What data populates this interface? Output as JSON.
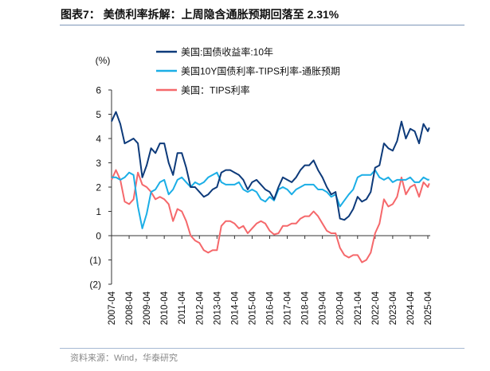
{
  "title": "图表7：  美债利率拆解：上周隐含通胀预期回落至 2.31%",
  "source": "资料来源：Wind，华泰研究",
  "chart_data": {
    "type": "line",
    "title": "图表7：  美债利率拆解：上周隐含通胀预期回落至 2.31%",
    "ylabel": "(%)",
    "xlabel": "",
    "ylim": [
      -2,
      6
    ],
    "yticks": [
      6,
      5,
      4,
      3,
      2,
      1,
      0,
      -1,
      -2
    ],
    "ytick_labels": [
      "6",
      "5",
      "4",
      "3",
      "2",
      "1",
      "0",
      "(1)",
      "(2)"
    ],
    "xtick_labels": [
      "2007-04",
      "2008-04",
      "2009-04",
      "2010-04",
      "2011-04",
      "2012-04",
      "2013-04",
      "2014-04",
      "2015-04",
      "2016-04",
      "2017-04",
      "2018-04",
      "2019-04",
      "2020-04",
      "2021-04",
      "2022-04",
      "2023-04",
      "2024-04",
      "2025-04"
    ],
    "grid": false,
    "legend_position": "top",
    "x": [
      "2007-04",
      "2007-07",
      "2007-10",
      "2008-01",
      "2008-04",
      "2008-07",
      "2008-10",
      "2009-01",
      "2009-04",
      "2009-07",
      "2009-10",
      "2010-01",
      "2010-04",
      "2010-07",
      "2010-10",
      "2011-01",
      "2011-04",
      "2011-07",
      "2011-10",
      "2012-01",
      "2012-04",
      "2012-07",
      "2012-10",
      "2013-01",
      "2013-04",
      "2013-07",
      "2013-10",
      "2014-01",
      "2014-04",
      "2014-07",
      "2014-10",
      "2015-01",
      "2015-04",
      "2015-07",
      "2015-10",
      "2016-01",
      "2016-04",
      "2016-07",
      "2016-10",
      "2017-01",
      "2017-04",
      "2017-07",
      "2017-10",
      "2018-01",
      "2018-04",
      "2018-07",
      "2018-10",
      "2019-01",
      "2019-04",
      "2019-07",
      "2019-10",
      "2020-01",
      "2020-04",
      "2020-07",
      "2020-10",
      "2021-01",
      "2021-04",
      "2021-07",
      "2021-10",
      "2022-01",
      "2022-04",
      "2022-07",
      "2022-10",
      "2023-01",
      "2023-04",
      "2023-07",
      "2023-10",
      "2024-01",
      "2024-04",
      "2024-07",
      "2024-10",
      "2025-01",
      "2025-04",
      "2025-05"
    ],
    "series": [
      {
        "name": "美国:国债收益率:10年",
        "color": "#0D3A7A",
        "values": [
          4.7,
          5.1,
          4.6,
          3.8,
          3.9,
          4.0,
          3.8,
          2.4,
          2.9,
          3.6,
          3.4,
          3.8,
          3.8,
          3.0,
          2.5,
          3.4,
          3.4,
          2.8,
          2.0,
          2.0,
          1.8,
          1.6,
          1.7,
          1.9,
          2.0,
          2.6,
          2.7,
          2.7,
          2.6,
          2.5,
          2.3,
          1.9,
          2.2,
          2.3,
          2.1,
          1.9,
          1.8,
          1.5,
          2.0,
          2.4,
          2.3,
          2.2,
          2.4,
          2.7,
          2.9,
          2.9,
          3.1,
          2.7,
          2.4,
          2.0,
          1.7,
          1.8,
          0.7,
          0.65,
          0.8,
          1.1,
          1.6,
          1.4,
          1.5,
          1.8,
          2.8,
          2.9,
          3.8,
          3.6,
          3.5,
          3.9,
          4.7,
          4.0,
          4.4,
          4.3,
          3.8,
          4.6,
          4.3,
          4.45
        ]
      },
      {
        "name": "美国10Y国债利率-TIPS利率-通胀预期",
        "color": "#1BAEE6",
        "values": [
          2.4,
          2.4,
          2.3,
          2.4,
          2.6,
          2.5,
          1.2,
          0.3,
          0.9,
          1.8,
          1.9,
          2.2,
          2.3,
          1.7,
          1.9,
          2.3,
          2.4,
          2.2,
          2.0,
          2.2,
          2.1,
          2.2,
          2.4,
          2.5,
          2.6,
          2.2,
          2.1,
          2.1,
          2.1,
          2.2,
          1.9,
          1.8,
          1.9,
          1.8,
          1.5,
          1.4,
          1.6,
          1.45,
          1.9,
          2.0,
          1.9,
          1.7,
          1.9,
          2.0,
          2.1,
          2.1,
          2.1,
          1.9,
          1.9,
          1.8,
          1.6,
          1.7,
          1.2,
          1.45,
          1.7,
          1.9,
          2.4,
          2.5,
          2.5,
          2.5,
          2.7,
          2.4,
          2.3,
          2.4,
          2.2,
          2.3,
          2.3,
          2.3,
          2.4,
          2.2,
          2.2,
          2.4,
          2.3,
          2.31
        ]
      },
      {
        "name": "美国：TIPS利率",
        "color": "#F5686B",
        "values": [
          2.3,
          2.7,
          2.3,
          1.4,
          1.3,
          1.5,
          2.6,
          2.1,
          2.0,
          1.8,
          1.5,
          1.6,
          1.5,
          1.3,
          0.6,
          1.1,
          1.0,
          0.6,
          0.0,
          -0.2,
          -0.3,
          -0.6,
          -0.7,
          -0.6,
          -0.6,
          0.4,
          0.6,
          0.6,
          0.5,
          0.3,
          0.4,
          0.1,
          0.3,
          0.5,
          0.6,
          0.5,
          0.2,
          0.05,
          0.1,
          0.4,
          0.4,
          0.5,
          0.5,
          0.7,
          0.8,
          0.8,
          1.0,
          0.8,
          0.5,
          0.2,
          0.1,
          0.1,
          -0.5,
          -0.8,
          -0.9,
          -0.8,
          -0.8,
          -1.1,
          -1.0,
          -0.7,
          0.1,
          0.5,
          1.5,
          1.2,
          1.3,
          1.6,
          2.4,
          1.7,
          2.0,
          2.1,
          1.6,
          2.2,
          2.0,
          2.15
        ]
      }
    ]
  }
}
